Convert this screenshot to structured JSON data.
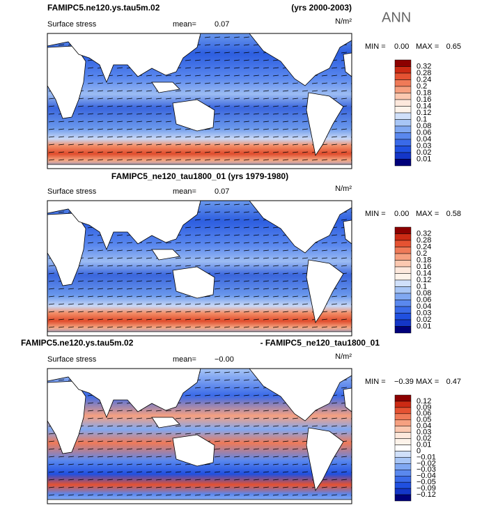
{
  "panels": [
    {
      "title_left": "FAMIPC5.ne120.ys.tau5m.02",
      "title_right": "(yrs 2000-2003)",
      "season": "ANN",
      "variable": "Surface stress",
      "mean_label": "mean=",
      "mean": "0.07",
      "units": "N/m²",
      "min_label": "MIN =",
      "min": "0.00",
      "max_label": "MAX =",
      "max": "0.65",
      "colorbar": {
        "labels": [
          "0.32",
          "0.28",
          "0.24",
          "0.2",
          "0.18",
          "0.16",
          "0.14",
          "0.12",
          "0.1",
          "0.08",
          "0.06",
          "0.04",
          "0.03",
          "0.02",
          "0.01"
        ],
        "colors": [
          "#8c0000",
          "#cc2a14",
          "#e55232",
          "#ef7a58",
          "#f6a080",
          "#fbc8b0",
          "#fde8dc",
          "#fdf3ea",
          "#d0e0fa",
          "#a8c6f6",
          "#80a8f2",
          "#5a88ee",
          "#3a6ae8",
          "#2050e0",
          "#1436c8",
          "#00007a"
        ]
      }
    },
    {
      "title": "FAMIPC5_ne120_tau1800_01 (yrs 1979-1980)",
      "variable": "Surface stress",
      "mean_label": "mean=",
      "mean": "0.07",
      "units": "N/m²",
      "min_label": "MIN =",
      "min": "0.00",
      "max_label": "MAX =",
      "max": "0.58",
      "colorbar": {
        "labels": [
          "0.32",
          "0.28",
          "0.24",
          "0.2",
          "0.18",
          "0.16",
          "0.14",
          "0.12",
          "0.1",
          "0.08",
          "0.06",
          "0.04",
          "0.03",
          "0.02",
          "0.01"
        ],
        "colors": [
          "#8c0000",
          "#cc2a14",
          "#e55232",
          "#ef7a58",
          "#f6a080",
          "#fbc8b0",
          "#fde8dc",
          "#fdf3ea",
          "#d0e0fa",
          "#a8c6f6",
          "#80a8f2",
          "#5a88ee",
          "#3a6ae8",
          "#2050e0",
          "#1436c8",
          "#00007a"
        ]
      }
    },
    {
      "title_left": "FAMIPC5.ne120.ys.tau5m.02",
      "title_right": "- FAMIPC5_ne120_tau1800_01",
      "variable": "Surface stress",
      "mean_label": "mean=",
      "mean": "−0.00",
      "units": "N/m²",
      "min_label": "MIN =",
      "min": "−0.39",
      "max_label": "MAX =",
      "max": "0.47",
      "colorbar": {
        "labels": [
          "0.12",
          "0.09",
          "0.06",
          "0.05",
          "0.04",
          "0.03",
          "0.02",
          "0.01",
          "0",
          "−0.01",
          "−0.02",
          "−0.03",
          "−0.04",
          "−0.05",
          "−0.09",
          "−0.12"
        ],
        "colors": [
          "#8c0000",
          "#cc2a14",
          "#e55232",
          "#ef7a58",
          "#f6a080",
          "#fbc8b0",
          "#fde8dc",
          "#fdf3ea",
          "#ffffff",
          "#d0e0fa",
          "#a8c6f6",
          "#80a8f2",
          "#5a88ee",
          "#3a6ae8",
          "#2050e0",
          "#1436c8",
          "#00007a"
        ]
      }
    }
  ]
}
